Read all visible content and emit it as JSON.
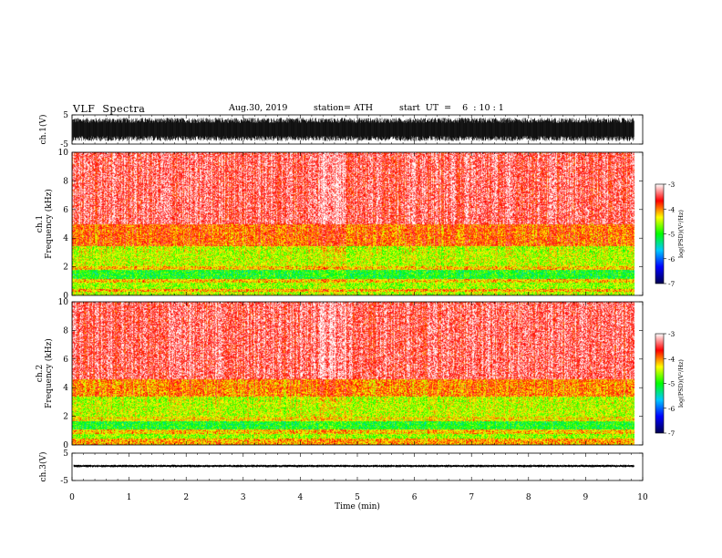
{
  "header": {
    "title": "VLF  Spectra",
    "date": "Aug.30, 2019",
    "station": "station= ATH",
    "start": "start  UT  =    6  : 10 : 1"
  },
  "chart_data": [
    {
      "type": "line",
      "name": "ch1-waveform",
      "ylabel": "ch.1(V)",
      "ylim": [
        -5,
        5
      ],
      "yticks": [
        5,
        -5
      ],
      "x_range_min": [
        0,
        9.85
      ],
      "envelope_v": [
        -4.0,
        4.0
      ]
    },
    {
      "type": "heatmap",
      "name": "ch1-spectrogram",
      "ylabel": "ch.1\nFrequency  (kHz)",
      "ylim": [
        0,
        10
      ],
      "yticks": [
        0,
        2,
        4,
        6,
        8,
        10
      ],
      "bands_khz_logpsd": [
        {
          "from": 0,
          "to": 0.3,
          "level": -4.5
        },
        {
          "from": 0.3,
          "to": 0.5,
          "level": -4.1
        },
        {
          "from": 0.5,
          "to": 0.9,
          "level": -4.6
        },
        {
          "from": 0.9,
          "to": 1.2,
          "level": -4.2
        },
        {
          "from": 1.2,
          "to": 1.8,
          "level": -5.0
        },
        {
          "from": 1.8,
          "to": 2.1,
          "level": -4.2
        },
        {
          "from": 2.1,
          "to": 3.5,
          "level": -4.5
        },
        {
          "from": 3.5,
          "to": 5.0,
          "level": -3.9
        },
        {
          "from": 5.0,
          "to": 10.0,
          "level": -3.4
        }
      ]
    },
    {
      "type": "heatmap",
      "name": "ch2-spectrogram",
      "ylabel": "ch.2\nFrequency  (kHz)",
      "ylim": [
        0,
        10
      ],
      "yticks": [
        0,
        2,
        4,
        6,
        8,
        10
      ],
      "bands_khz_logpsd": [
        {
          "from": 0,
          "to": 0.5,
          "level": -4.1
        },
        {
          "from": 0.5,
          "to": 0.8,
          "level": -4.6
        },
        {
          "from": 0.8,
          "to": 1.1,
          "level": -4.2
        },
        {
          "from": 1.1,
          "to": 1.7,
          "level": -5.0
        },
        {
          "from": 1.7,
          "to": 2.0,
          "level": -4.3
        },
        {
          "from": 2.0,
          "to": 3.4,
          "level": -4.5
        },
        {
          "from": 3.4,
          "to": 4.6,
          "level": -4.0
        },
        {
          "from": 4.6,
          "to": 10.0,
          "level": -3.4
        }
      ]
    },
    {
      "type": "line",
      "name": "ch3-waveform",
      "ylabel": "ch.3(V)",
      "ylim": [
        -5,
        5
      ],
      "yticks": [
        5,
        -5
      ],
      "baseline_v": 0.3,
      "xlabel": "Time  (min)",
      "xticks": [
        0,
        1,
        2,
        3,
        4,
        5,
        6,
        7,
        8,
        9,
        10
      ],
      "xlim": [
        0,
        10
      ]
    }
  ],
  "colorbars": [
    {
      "name": "ch1-colorbar",
      "label": "log(PSD)(V²/Hz)",
      "ticks": [
        -3,
        -4,
        -5,
        -6,
        -7
      ],
      "range": [
        -7,
        -3
      ]
    },
    {
      "name": "ch2-colorbar",
      "label": "log(PSD)(V²/Hz)",
      "ticks": [
        -3,
        -4,
        -5,
        -6,
        -7
      ],
      "range": [
        -7,
        -3
      ]
    }
  ],
  "colormap": [
    "#000050",
    "#0000ff",
    "#00c8ff",
    "#00ff00",
    "#ffff00",
    "#ff0000",
    "#ffffff"
  ]
}
